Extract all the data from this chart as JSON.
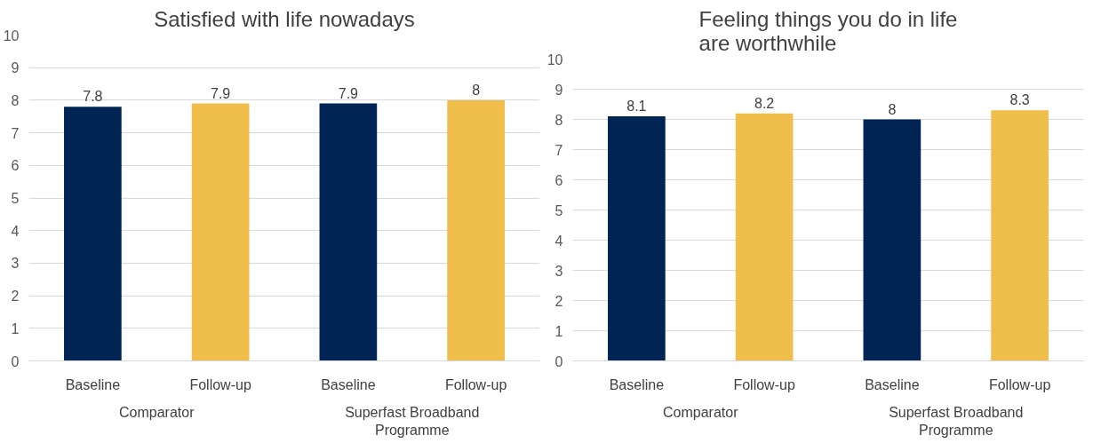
{
  "chart_data": [
    {
      "type": "bar",
      "title": "Satisfied with life nowadays",
      "categories": [
        "Baseline",
        "Follow-up",
        "Baseline",
        "Follow-up"
      ],
      "values": [
        7.8,
        7.9,
        7.9,
        8
      ],
      "colors": [
        "#002554",
        "#f0be4a",
        "#002554",
        "#f0be4a"
      ],
      "ylim": [
        0,
        10
      ],
      "yticks": [
        0,
        1,
        2,
        3,
        4,
        5,
        6,
        7,
        8,
        9,
        10
      ],
      "grid": "y",
      "data_labels": true,
      "annotations": [
        "Comparator",
        "Superfast Broadband Programme"
      ]
    },
    {
      "type": "bar",
      "title": "Feeling things you do in life are worthwhile",
      "categories": [
        "Baseline",
        "Follow-up",
        "Baseline",
        "Follow-up"
      ],
      "values": [
        8.1,
        8.2,
        8,
        8.3
      ],
      "colors": [
        "#002554",
        "#f0be4a",
        "#002554",
        "#f0be4a"
      ],
      "ylim": [
        0,
        10
      ],
      "yticks": [
        0,
        1,
        2,
        3,
        4,
        5,
        6,
        7,
        8,
        9,
        10
      ],
      "grid": "y",
      "data_labels": true,
      "annotations": [
        "Comparator",
        "Superfast Broadband Programme"
      ]
    }
  ]
}
